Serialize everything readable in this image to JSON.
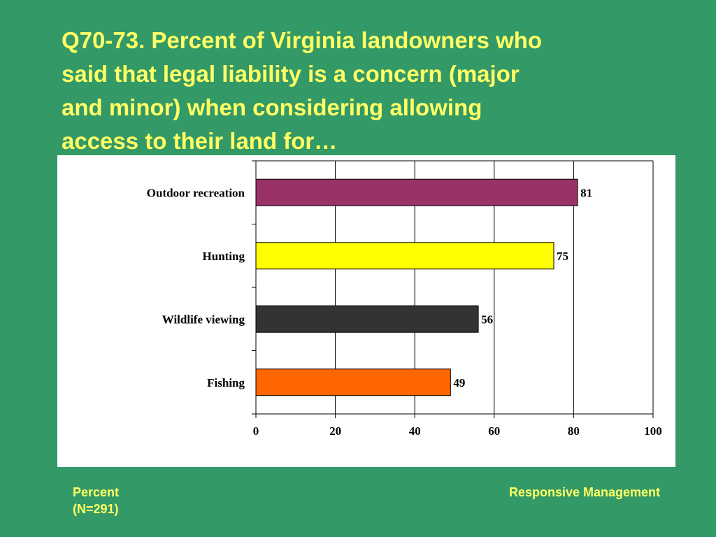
{
  "slide": {
    "title": "Q70-73. Percent of Virginia landowners who\nsaid that legal liability is a concern (major\nand minor) when considering allowing\naccess to their land for…",
    "footer_left_line1": "Percent",
    "footer_left_line2": "(N=291)",
    "footer_right": "Responsive Management"
  },
  "colors": {
    "background": "#339966",
    "title_text": "#FFFF66",
    "panel": "#FFFFFF"
  },
  "chart_data": {
    "type": "bar",
    "orientation": "horizontal",
    "title": "",
    "xlabel": "",
    "ylabel": "",
    "categories": [
      "Outdoor recreation",
      "Hunting",
      "Wildlife viewing",
      "Fishing"
    ],
    "values": [
      81,
      75,
      56,
      49
    ],
    "bar_colors": [
      "#993366",
      "#FFFF00",
      "#333333",
      "#FF6600"
    ],
    "xlim": [
      0,
      100
    ],
    "xticks": [
      0,
      20,
      40,
      60,
      80,
      100
    ],
    "xtick_labels": [
      "0",
      "20",
      "40",
      "60",
      "80",
      "100"
    ],
    "grid": true,
    "legend": "none",
    "data_labels": [
      "81",
      "75",
      "56",
      "49"
    ]
  }
}
